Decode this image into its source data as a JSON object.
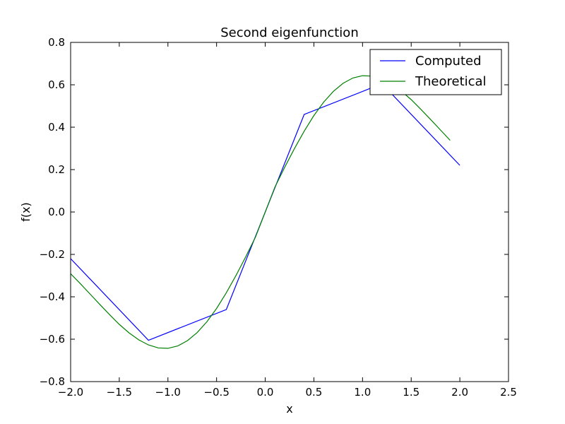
{
  "chart_data": {
    "type": "line",
    "title": "Second eigenfunction",
    "xlabel": "x",
    "ylabel": "f(x)",
    "xlim": [
      -2.0,
      2.5
    ],
    "ylim": [
      -0.8,
      0.8
    ],
    "xticks": [
      -2.0,
      -1.5,
      -1.0,
      -0.5,
      0.0,
      0.5,
      1.0,
      1.5,
      2.0,
      2.5
    ],
    "yticks": [
      -0.8,
      -0.6,
      -0.4,
      -0.2,
      0.0,
      0.2,
      0.4,
      0.6,
      0.8
    ],
    "xtick_labels": [
      "−2.0",
      "−1.5",
      "−1.0",
      "−0.5",
      "0.0",
      "0.5",
      "1.0",
      "1.5",
      "2.0",
      "2.5"
    ],
    "ytick_labels": [
      "−0.8",
      "−0.6",
      "−0.4",
      "−0.2",
      "0.0",
      "0.2",
      "0.4",
      "0.6",
      "0.8"
    ],
    "grid": false,
    "legend_position": "top-right",
    "series": [
      {
        "name": "Computed",
        "color": "#0000ff",
        "x": [
          -2.0,
          -1.2,
          -0.4,
          0.4,
          1.2,
          2.0
        ],
        "y": [
          -0.22,
          -0.605,
          -0.46,
          0.46,
          0.605,
          0.22
        ]
      },
      {
        "name": "Theoretical",
        "color": "#008000",
        "x": [
          -2.0,
          -1.9,
          -1.8,
          -1.7,
          -1.6,
          -1.5,
          -1.4,
          -1.3,
          -1.2,
          -1.1,
          -1.0,
          -0.9,
          -0.8,
          -0.7,
          -0.6,
          -0.5,
          -0.4,
          -0.3,
          -0.2,
          -0.1,
          0.0,
          0.1,
          0.2,
          0.3,
          0.4,
          0.5,
          0.6,
          0.7,
          0.8,
          0.9,
          1.0,
          1.1,
          1.2,
          1.3,
          1.4,
          1.5,
          1.6,
          1.7,
          1.8,
          1.9
        ],
        "y": [
          -0.291,
          -0.338,
          -0.387,
          -0.436,
          -0.484,
          -0.53,
          -0.57,
          -0.603,
          -0.627,
          -0.641,
          -0.643,
          -0.632,
          -0.607,
          -0.569,
          -0.518,
          -0.455,
          -0.381,
          -0.299,
          -0.211,
          -0.118,
          0.0,
          0.118,
          0.211,
          0.299,
          0.381,
          0.455,
          0.518,
          0.569,
          0.607,
          0.632,
          0.643,
          0.641,
          0.627,
          0.603,
          0.57,
          0.53,
          0.484,
          0.436,
          0.387,
          0.338
        ]
      }
    ]
  }
}
